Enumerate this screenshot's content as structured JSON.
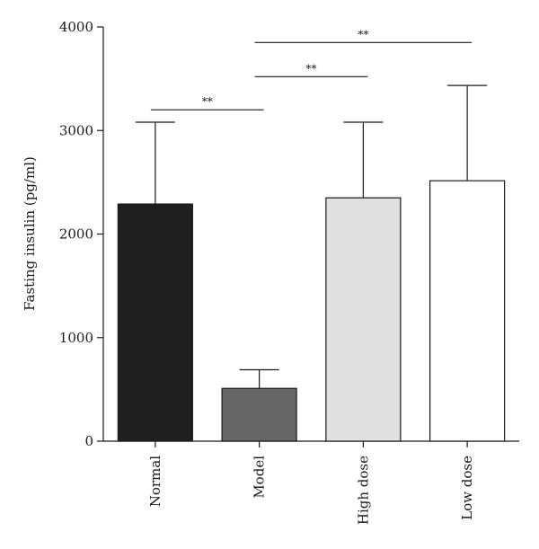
{
  "chart_data": {
    "type": "bar",
    "title": "",
    "xlabel": "",
    "ylabel": "Fasting insulin (pg/ml)",
    "ylim": [
      0,
      4000
    ],
    "yticks": [
      0,
      1000,
      2000,
      3000,
      4000
    ],
    "categories": [
      "Normal",
      "Model",
      "High dose",
      "Low dose"
    ],
    "values": [
      2290,
      510,
      2350,
      2515
    ],
    "errors": [
      790,
      180,
      730,
      920
    ],
    "colors": [
      "#1f1f1f",
      "#666666",
      "#e0e0e0",
      "#ffffff"
    ],
    "grid": false,
    "significance": [
      {
        "from": 0,
        "to": 1,
        "y": 3200,
        "label": "**"
      },
      {
        "from": 1,
        "to": 2,
        "y": 3520,
        "label": "**"
      },
      {
        "from": 1,
        "to": 3,
        "y": 3850,
        "label": "**"
      }
    ]
  }
}
